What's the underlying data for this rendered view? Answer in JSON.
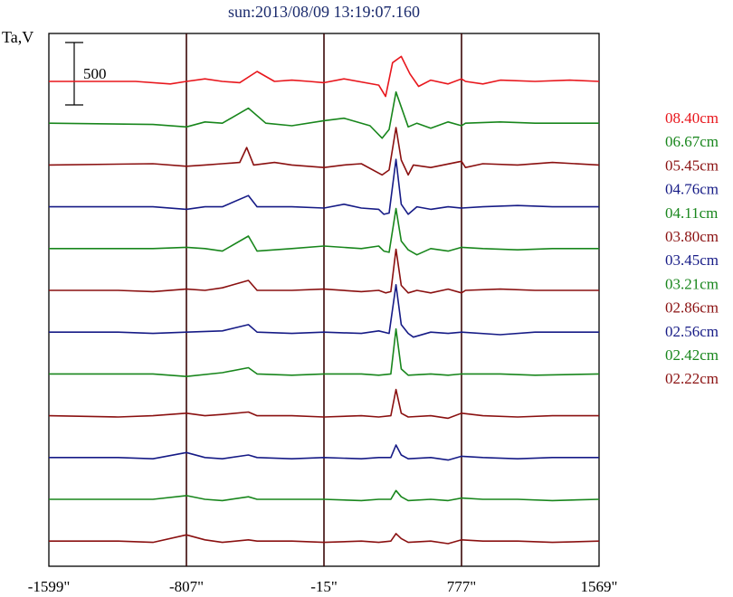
{
  "chart_data": {
    "type": "line",
    "title": "sun:2013/08/09 13:19:07.160",
    "ylabel": "Ta,V",
    "scale_bar_label": "500",
    "scale_bar_value": 500,
    "x_ticks": [
      {
        "value": -1599,
        "label": "-1599\""
      },
      {
        "value": -807,
        "label": "-807\""
      },
      {
        "value": -15,
        "label": "-15\""
      },
      {
        "value": 777,
        "label": "777\""
      },
      {
        "value": 1569,
        "label": "1569\""
      }
    ],
    "xlim": [
      -1599,
      1569
    ],
    "vertical_lines": [
      -807,
      -15,
      777
    ],
    "grid": false,
    "legend_position": "right",
    "series": [
      {
        "name": "08.40cm",
        "color": "#e8161c",
        "points": [
          [
            -1599,
            0
          ],
          [
            -1100,
            0
          ],
          [
            -900,
            -20
          ],
          [
            -807,
            0
          ],
          [
            -700,
            20
          ],
          [
            -600,
            0
          ],
          [
            -500,
            -10
          ],
          [
            -400,
            80
          ],
          [
            -300,
            0
          ],
          [
            -200,
            10
          ],
          [
            -100,
            0
          ],
          [
            -15,
            -10
          ],
          [
            100,
            20
          ],
          [
            300,
            -30
          ],
          [
            340,
            -120
          ],
          [
            380,
            150
          ],
          [
            430,
            200
          ],
          [
            480,
            60
          ],
          [
            530,
            -40
          ],
          [
            600,
            10
          ],
          [
            700,
            -20
          ],
          [
            777,
            20
          ],
          [
            800,
            0
          ],
          [
            900,
            -20
          ],
          [
            1000,
            10
          ],
          [
            1200,
            0
          ],
          [
            1400,
            10
          ],
          [
            1569,
            0
          ]
        ]
      },
      {
        "name": "06.67cm",
        "color": "#18861c",
        "points": [
          [
            -1599,
            0
          ],
          [
            -1000,
            -10
          ],
          [
            -807,
            -30
          ],
          [
            -700,
            10
          ],
          [
            -600,
            0
          ],
          [
            -450,
            120
          ],
          [
            -350,
            0
          ],
          [
            -200,
            -20
          ],
          [
            -15,
            20
          ],
          [
            100,
            40
          ],
          [
            250,
            -20
          ],
          [
            320,
            -120
          ],
          [
            360,
            -50
          ],
          [
            400,
            250
          ],
          [
            430,
            130
          ],
          [
            470,
            -30
          ],
          [
            520,
            0
          ],
          [
            600,
            -40
          ],
          [
            700,
            10
          ],
          [
            777,
            -20
          ],
          [
            800,
            0
          ],
          [
            1000,
            10
          ],
          [
            1200,
            0
          ],
          [
            1569,
            0
          ]
        ]
      },
      {
        "name": "05.45cm",
        "color": "#8a1010",
        "points": [
          [
            -1599,
            0
          ],
          [
            -1000,
            10
          ],
          [
            -807,
            -10
          ],
          [
            -700,
            0
          ],
          [
            -600,
            10
          ],
          [
            -500,
            20
          ],
          [
            -460,
            140
          ],
          [
            -420,
            0
          ],
          [
            -300,
            20
          ],
          [
            -200,
            0
          ],
          [
            -15,
            -20
          ],
          [
            100,
            0
          ],
          [
            200,
            10
          ],
          [
            320,
            -80
          ],
          [
            360,
            -40
          ],
          [
            400,
            300
          ],
          [
            430,
            40
          ],
          [
            470,
            -80
          ],
          [
            500,
            0
          ],
          [
            600,
            -20
          ],
          [
            777,
            30
          ],
          [
            800,
            -20
          ],
          [
            900,
            10
          ],
          [
            1100,
            0
          ],
          [
            1300,
            20
          ],
          [
            1569,
            0
          ]
        ]
      },
      {
        "name": "04.76cm",
        "color": "#161b86",
        "points": [
          [
            -1599,
            0
          ],
          [
            -1000,
            0
          ],
          [
            -807,
            -20
          ],
          [
            -700,
            0
          ],
          [
            -600,
            0
          ],
          [
            -450,
            90
          ],
          [
            -400,
            0
          ],
          [
            -200,
            0
          ],
          [
            -15,
            -10
          ],
          [
            100,
            20
          ],
          [
            200,
            -10
          ],
          [
            300,
            -20
          ],
          [
            330,
            -60
          ],
          [
            360,
            -50
          ],
          [
            400,
            380
          ],
          [
            430,
            20
          ],
          [
            470,
            -60
          ],
          [
            520,
            0
          ],
          [
            600,
            -20
          ],
          [
            700,
            0
          ],
          [
            777,
            -10
          ],
          [
            900,
            0
          ],
          [
            1100,
            10
          ],
          [
            1300,
            0
          ],
          [
            1569,
            0
          ]
        ]
      },
      {
        "name": "04.11cm",
        "color": "#18861c",
        "points": [
          [
            -1599,
            0
          ],
          [
            -1000,
            0
          ],
          [
            -807,
            10
          ],
          [
            -700,
            0
          ],
          [
            -600,
            -20
          ],
          [
            -450,
            100
          ],
          [
            -400,
            -20
          ],
          [
            -200,
            0
          ],
          [
            -15,
            20
          ],
          [
            200,
            0
          ],
          [
            300,
            20
          ],
          [
            330,
            -20
          ],
          [
            360,
            -30
          ],
          [
            400,
            320
          ],
          [
            430,
            60
          ],
          [
            470,
            -10
          ],
          [
            520,
            -50
          ],
          [
            600,
            0
          ],
          [
            700,
            -20
          ],
          [
            777,
            10
          ],
          [
            900,
            0
          ],
          [
            1100,
            -10
          ],
          [
            1300,
            0
          ],
          [
            1569,
            0
          ]
        ]
      },
      {
        "name": "03.80cm",
        "color": "#8a1010",
        "points": [
          [
            -1599,
            0
          ],
          [
            -1200,
            0
          ],
          [
            -1000,
            -10
          ],
          [
            -807,
            10
          ],
          [
            -700,
            0
          ],
          [
            -600,
            20
          ],
          [
            -450,
            80
          ],
          [
            -400,
            0
          ],
          [
            -200,
            0
          ],
          [
            -15,
            10
          ],
          [
            200,
            -10
          ],
          [
            300,
            0
          ],
          [
            340,
            -20
          ],
          [
            370,
            -10
          ],
          [
            400,
            330
          ],
          [
            430,
            40
          ],
          [
            470,
            -20
          ],
          [
            520,
            0
          ],
          [
            600,
            -20
          ],
          [
            700,
            10
          ],
          [
            777,
            -20
          ],
          [
            800,
            0
          ],
          [
            1000,
            10
          ],
          [
            1200,
            0
          ],
          [
            1569,
            0
          ]
        ]
      },
      {
        "name": "03.45cm",
        "color": "#161b86",
        "points": [
          [
            -1599,
            0
          ],
          [
            -1200,
            0
          ],
          [
            -1000,
            -10
          ],
          [
            -807,
            0
          ],
          [
            -600,
            10
          ],
          [
            -450,
            60
          ],
          [
            -400,
            0
          ],
          [
            -200,
            -10
          ],
          [
            -15,
            0
          ],
          [
            200,
            -10
          ],
          [
            300,
            10
          ],
          [
            360,
            -10
          ],
          [
            400,
            380
          ],
          [
            430,
            60
          ],
          [
            470,
            -10
          ],
          [
            500,
            -40
          ],
          [
            600,
            0
          ],
          [
            700,
            -10
          ],
          [
            777,
            0
          ],
          [
            1000,
            -20
          ],
          [
            1200,
            0
          ],
          [
            1569,
            0
          ]
        ]
      },
      {
        "name": "03.21cm",
        "color": "#18861c",
        "points": [
          [
            -1599,
            0
          ],
          [
            -1200,
            0
          ],
          [
            -1000,
            0
          ],
          [
            -807,
            -20
          ],
          [
            -600,
            10
          ],
          [
            -450,
            50
          ],
          [
            -400,
            0
          ],
          [
            -200,
            -10
          ],
          [
            -15,
            0
          ],
          [
            200,
            0
          ],
          [
            300,
            -10
          ],
          [
            370,
            0
          ],
          [
            400,
            360
          ],
          [
            430,
            40
          ],
          [
            470,
            -10
          ],
          [
            600,
            0
          ],
          [
            700,
            -10
          ],
          [
            777,
            0
          ],
          [
            1000,
            0
          ],
          [
            1200,
            -10
          ],
          [
            1569,
            0
          ]
        ]
      },
      {
        "name": "02.86cm",
        "color": "#8a1010",
        "points": [
          [
            -1599,
            0
          ],
          [
            -1200,
            -10
          ],
          [
            -1000,
            0
          ],
          [
            -807,
            20
          ],
          [
            -700,
            0
          ],
          [
            -600,
            10
          ],
          [
            -450,
            30
          ],
          [
            -400,
            0
          ],
          [
            -200,
            0
          ],
          [
            -15,
            -10
          ],
          [
            200,
            0
          ],
          [
            300,
            -10
          ],
          [
            370,
            0
          ],
          [
            400,
            210
          ],
          [
            430,
            20
          ],
          [
            470,
            -10
          ],
          [
            600,
            0
          ],
          [
            700,
            -20
          ],
          [
            777,
            20
          ],
          [
            900,
            0
          ],
          [
            1100,
            -10
          ],
          [
            1300,
            0
          ],
          [
            1569,
            0
          ]
        ]
      },
      {
        "name": "02.56cm",
        "color": "#161b86",
        "points": [
          [
            -1599,
            0
          ],
          [
            -1200,
            0
          ],
          [
            -1000,
            -10
          ],
          [
            -807,
            40
          ],
          [
            -700,
            0
          ],
          [
            -600,
            -10
          ],
          [
            -450,
            20
          ],
          [
            -400,
            0
          ],
          [
            -200,
            -10
          ],
          [
            -15,
            0
          ],
          [
            200,
            -10
          ],
          [
            300,
            0
          ],
          [
            370,
            0
          ],
          [
            400,
            100
          ],
          [
            430,
            20
          ],
          [
            470,
            -10
          ],
          [
            600,
            0
          ],
          [
            700,
            -20
          ],
          [
            777,
            10
          ],
          [
            900,
            0
          ],
          [
            1100,
            -10
          ],
          [
            1300,
            0
          ],
          [
            1569,
            0
          ]
        ]
      },
      {
        "name": "02.42cm",
        "color": "#18861c",
        "points": [
          [
            -1599,
            0
          ],
          [
            -1200,
            0
          ],
          [
            -1000,
            0
          ],
          [
            -807,
            30
          ],
          [
            -700,
            0
          ],
          [
            -600,
            -10
          ],
          [
            -450,
            20
          ],
          [
            -400,
            0
          ],
          [
            -200,
            0
          ],
          [
            -15,
            0
          ],
          [
            200,
            -10
          ],
          [
            300,
            0
          ],
          [
            370,
            0
          ],
          [
            400,
            70
          ],
          [
            430,
            20
          ],
          [
            470,
            -10
          ],
          [
            600,
            0
          ],
          [
            700,
            -10
          ],
          [
            777,
            10
          ],
          [
            900,
            0
          ],
          [
            1100,
            0
          ],
          [
            1300,
            -10
          ],
          [
            1569,
            0
          ]
        ]
      },
      {
        "name": "02.22cm",
        "color": "#8a1010",
        "points": [
          [
            -1599,
            0
          ],
          [
            -1200,
            0
          ],
          [
            -1000,
            -10
          ],
          [
            -807,
            50
          ],
          [
            -700,
            10
          ],
          [
            -600,
            -10
          ],
          [
            -450,
            10
          ],
          [
            -400,
            0
          ],
          [
            -200,
            0
          ],
          [
            -15,
            -10
          ],
          [
            200,
            0
          ],
          [
            300,
            -10
          ],
          [
            370,
            0
          ],
          [
            400,
            60
          ],
          [
            430,
            20
          ],
          [
            470,
            -10
          ],
          [
            600,
            0
          ],
          [
            700,
            -20
          ],
          [
            777,
            10
          ],
          [
            900,
            0
          ],
          [
            1100,
            0
          ],
          [
            1300,
            -10
          ],
          [
            1569,
            0
          ]
        ]
      }
    ]
  }
}
